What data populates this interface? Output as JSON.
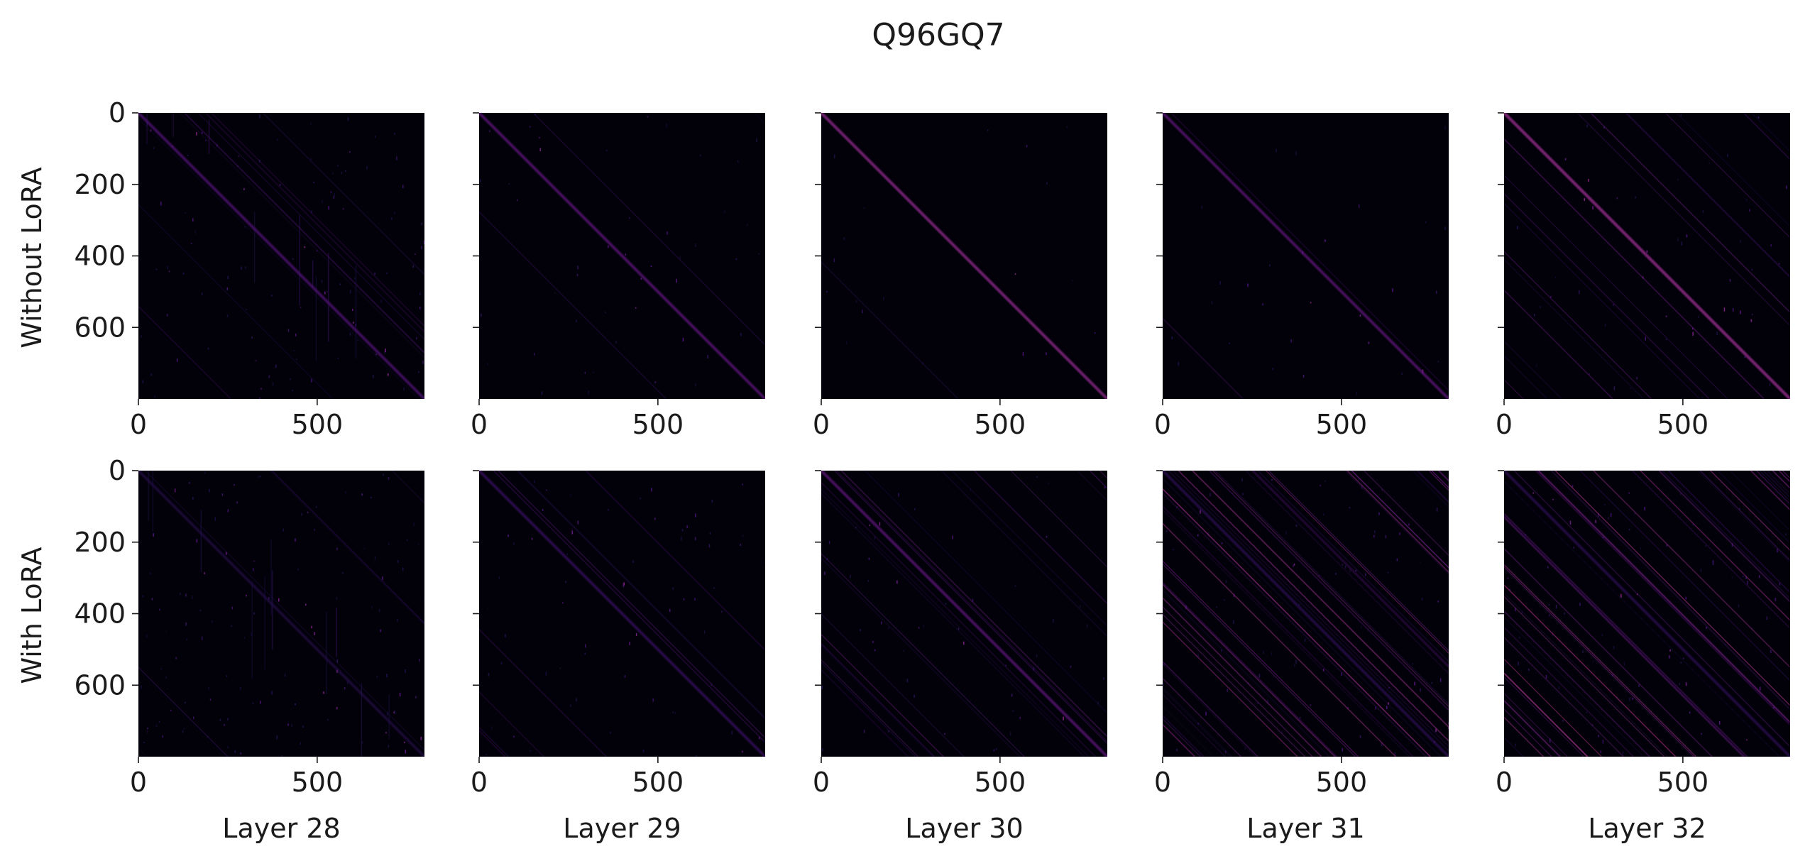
{
  "chart_data": {
    "type": "heatmap",
    "title": "Q96GQ7",
    "row_labels": [
      "Without LoRA",
      "With LoRA"
    ],
    "column_labels": [
      "Layer 28",
      "Layer 29",
      "Layer 30",
      "Layer 31",
      "Layer 32"
    ],
    "matrix_size": 800,
    "x_ticks": [
      0,
      500
    ],
    "y_ticks": [
      0,
      200,
      400,
      600
    ],
    "xlim": [
      0,
      800
    ],
    "ylim": [
      800,
      0
    ],
    "colormap": "magma",
    "panels": [
      {
        "row": "Without LoRA",
        "layer": "Layer 28",
        "pattern": "strong main diagonal with diffuse vertical streaks",
        "diagonal_intensity": 0.55,
        "off_diagonal_density": 0.15,
        "noise": 0.3
      },
      {
        "row": "Without LoRA",
        "layer": "Layer 29",
        "pattern": "clean main diagonal",
        "diagonal_intensity": 0.6,
        "off_diagonal_density": 0.05,
        "noise": 0.12
      },
      {
        "row": "Without LoRA",
        "layer": "Layer 30",
        "pattern": "very sharp thin main diagonal",
        "diagonal_intensity": 0.8,
        "off_diagonal_density": 0.02,
        "noise": 0.05
      },
      {
        "row": "Without LoRA",
        "layer": "Layer 31",
        "pattern": "thin main diagonal",
        "diagonal_intensity": 0.6,
        "off_diagonal_density": 0.04,
        "noise": 0.08
      },
      {
        "row": "Without LoRA",
        "layer": "Layer 32",
        "pattern": "bright main diagonal with several parallel off-diagonals",
        "diagonal_intensity": 0.85,
        "off_diagonal_density": 0.3,
        "noise": 0.15
      },
      {
        "row": "With LoRA",
        "layer": "Layer 28",
        "pattern": "faint main diagonal with diffuse noise",
        "diagonal_intensity": 0.35,
        "off_diagonal_density": 0.1,
        "noise": 0.35
      },
      {
        "row": "With LoRA",
        "layer": "Layer 29",
        "pattern": "main diagonal with a few parallel lines",
        "diagonal_intensity": 0.45,
        "off_diagonal_density": 0.15,
        "noise": 0.18
      },
      {
        "row": "With LoRA",
        "layer": "Layer 30",
        "pattern": "main diagonal with many parallel off-diagonals",
        "diagonal_intensity": 0.6,
        "off_diagonal_density": 0.4,
        "noise": 0.15
      },
      {
        "row": "With LoRA",
        "layer": "Layer 31",
        "pattern": "dense parallel off-diagonal stripes",
        "diagonal_intensity": 0.4,
        "off_diagonal_density": 0.9,
        "noise": 0.25
      },
      {
        "row": "With LoRA",
        "layer": "Layer 32",
        "pattern": "dense parallel off-diagonal stripes",
        "diagonal_intensity": 0.4,
        "off_diagonal_density": 0.95,
        "noise": 0.25
      }
    ]
  }
}
